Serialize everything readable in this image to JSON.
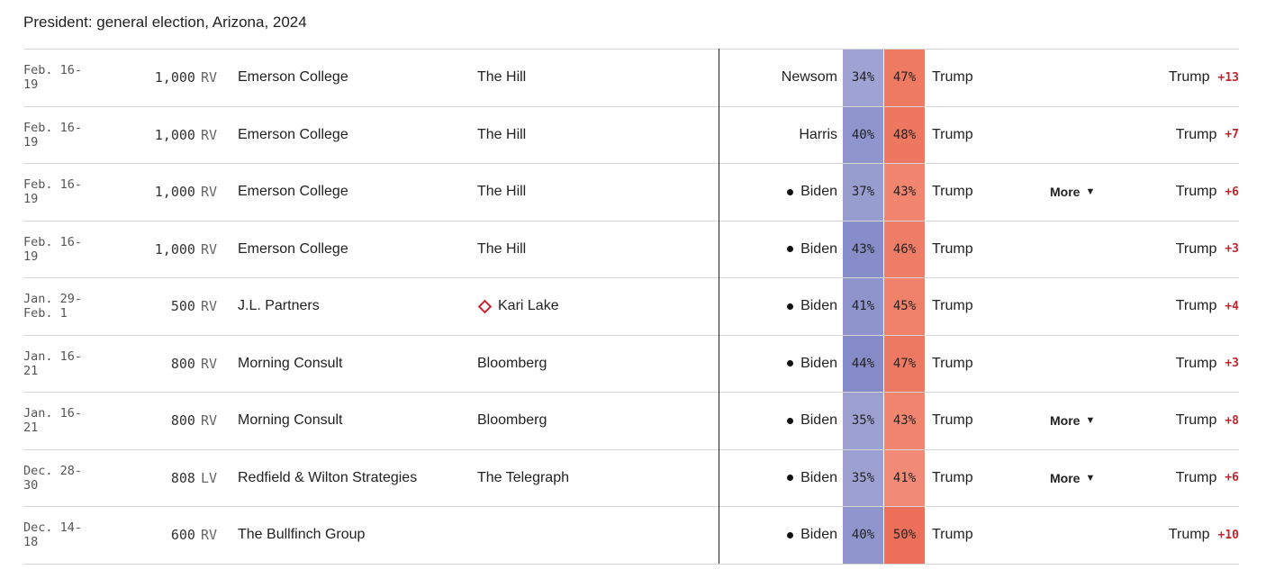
{
  "title": "President: general election, Arizona, 2024",
  "rows": [
    {
      "dates": "Feb. 16-19",
      "sample": "1,000",
      "population": "RV",
      "pollster": "Emerson College",
      "sponsor": "The Hill",
      "sponsor_icon": "",
      "dem": "Newsom",
      "dem_dot": false,
      "dem_pct": "34%",
      "dem_color": "#9ea3d3",
      "rep_pct": "47%",
      "rep_color": "#ef7a62",
      "rep": "Trump",
      "more": "",
      "leader": "Trump",
      "margin": "+13"
    },
    {
      "dates": "Feb. 16-19",
      "sample": "1,000",
      "population": "RV",
      "pollster": "Emerson College",
      "sponsor": "The Hill",
      "sponsor_icon": "",
      "dem": "Harris",
      "dem_dot": false,
      "dem_pct": "40%",
      "dem_color": "#9096cd",
      "rep_pct": "48%",
      "rep_color": "#ed7760",
      "rep": "Trump",
      "more": "",
      "leader": "Trump",
      "margin": "+7"
    },
    {
      "dates": "Feb. 16-19",
      "sample": "1,000",
      "population": "RV",
      "pollster": "Emerson College",
      "sponsor": "The Hill",
      "sponsor_icon": "",
      "dem": "Biden",
      "dem_dot": true,
      "dem_pct": "37%",
      "dem_color": "#989dd0",
      "rep_pct": "43%",
      "rep_color": "#f08570",
      "rep": "Trump",
      "more": "More",
      "leader": "Trump",
      "margin": "+6"
    },
    {
      "dates": "Feb. 16-19",
      "sample": "1,000",
      "population": "RV",
      "pollster": "Emerson College",
      "sponsor": "The Hill",
      "sponsor_icon": "",
      "dem": "Biden",
      "dem_dot": true,
      "dem_pct": "43%",
      "dem_color": "#878dc8",
      "rep_pct": "46%",
      "rep_color": "#ee7d67",
      "rep": "Trump",
      "more": "",
      "leader": "Trump",
      "margin": "+3"
    },
    {
      "dates": "Jan. 29- Feb. 1",
      "sample": "500",
      "population": "RV",
      "pollster": "J.L. Partners",
      "sponsor": "Kari Lake",
      "sponsor_icon": "diamond",
      "dem": "Biden",
      "dem_dot": true,
      "dem_pct": "41%",
      "dem_color": "#8f95cc",
      "rep_pct": "45%",
      "rep_color": "#ef816a",
      "rep": "Trump",
      "more": "",
      "leader": "Trump",
      "margin": "+4"
    },
    {
      "dates": "Jan. 16-21",
      "sample": "800",
      "population": "RV",
      "pollster": "Morning Consult",
      "sponsor": "Bloomberg",
      "sponsor_icon": "",
      "dem": "Biden",
      "dem_dot": true,
      "dem_pct": "44%",
      "dem_color": "#858bc7",
      "rep_pct": "47%",
      "rep_color": "#ee7963",
      "rep": "Trump",
      "more": "",
      "leader": "Trump",
      "margin": "+3"
    },
    {
      "dates": "Jan. 16-21",
      "sample": "800",
      "population": "RV",
      "pollster": "Morning Consult",
      "sponsor": "Bloomberg",
      "sponsor_icon": "",
      "dem": "Biden",
      "dem_dot": true,
      "dem_pct": "35%",
      "dem_color": "#9ca1d2",
      "rep_pct": "43%",
      "rep_color": "#f08570",
      "rep": "Trump",
      "more": "More",
      "leader": "Trump",
      "margin": "+8"
    },
    {
      "dates": "Dec. 28-30",
      "sample": "808",
      "population": "LV",
      "pollster": "Redfield & Wilton Strategies",
      "sponsor": "The Telegraph",
      "sponsor_icon": "",
      "dem": "Biden",
      "dem_dot": true,
      "dem_pct": "35%",
      "dem_color": "#9ca1d2",
      "rep_pct": "41%",
      "rep_color": "#f18b77",
      "rep": "Trump",
      "more": "More",
      "leader": "Trump",
      "margin": "+6"
    },
    {
      "dates": "Dec. 14-18",
      "sample": "600",
      "population": "RV",
      "pollster": "The Bullfinch Group",
      "sponsor": "",
      "sponsor_icon": "",
      "dem": "Biden",
      "dem_dot": true,
      "dem_pct": "40%",
      "dem_color": "#9096cd",
      "rep_pct": "50%",
      "rep_color": "#ec7059",
      "rep": "Trump",
      "more": "",
      "leader": "Trump",
      "margin": "+10"
    }
  ]
}
